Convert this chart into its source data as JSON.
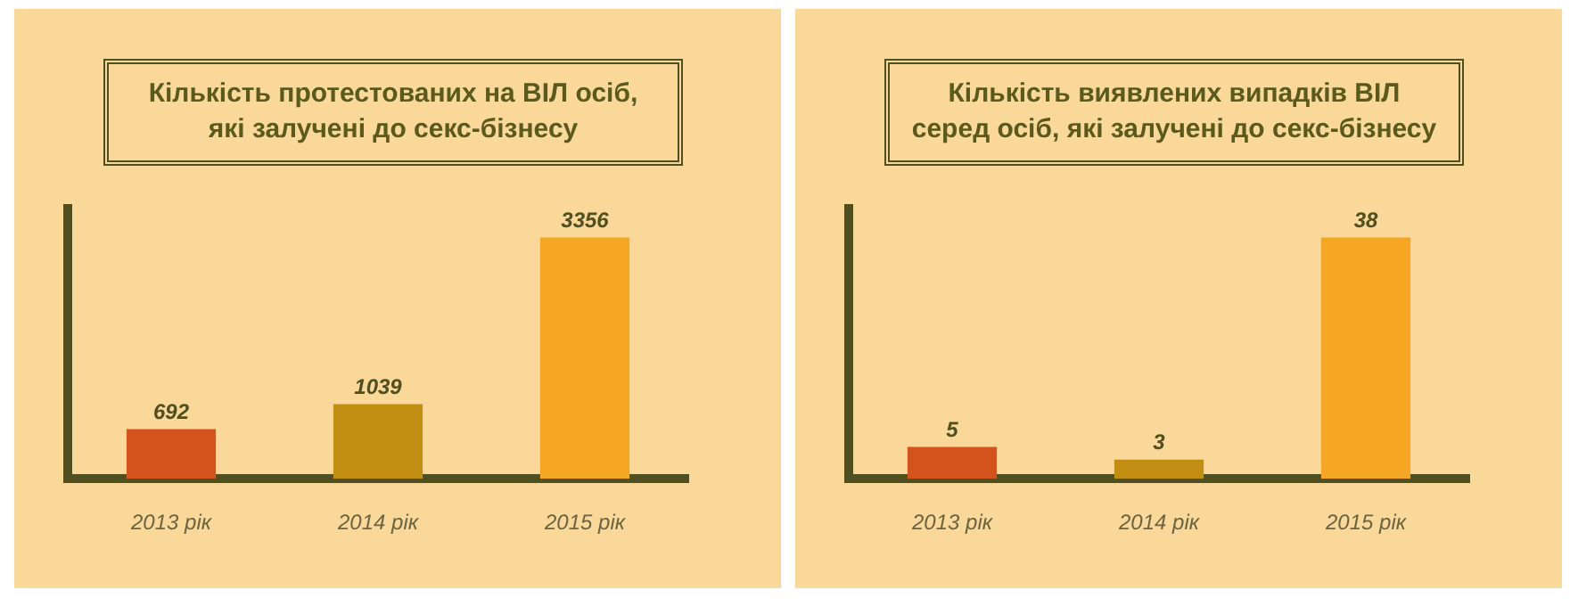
{
  "chart_data": [
    {
      "type": "bar",
      "title": "Кількість протестованих на ВІЛ осіб,\nякі залучені до секс-бізнесу",
      "categories": [
        "2013 рік",
        "2014 рік",
        "2015 рік"
      ],
      "values": [
        692,
        1039,
        3356
      ],
      "colors": [
        "#d4531c",
        "#c18e12",
        "#f5a623"
      ],
      "data_labels": true,
      "grid": false,
      "legend": false
    },
    {
      "type": "bar",
      "title": "Кількість виявлених випадків ВІЛ\nсеред осіб, які залучені до секс-бізнесу",
      "categories": [
        "2013 рік",
        "2014 рік",
        "2015 рік"
      ],
      "values": [
        5,
        3,
        38
      ],
      "colors": [
        "#d4531c",
        "#c18e12",
        "#f5a623"
      ],
      "data_labels": true,
      "grid": false,
      "legend": false
    }
  ]
}
